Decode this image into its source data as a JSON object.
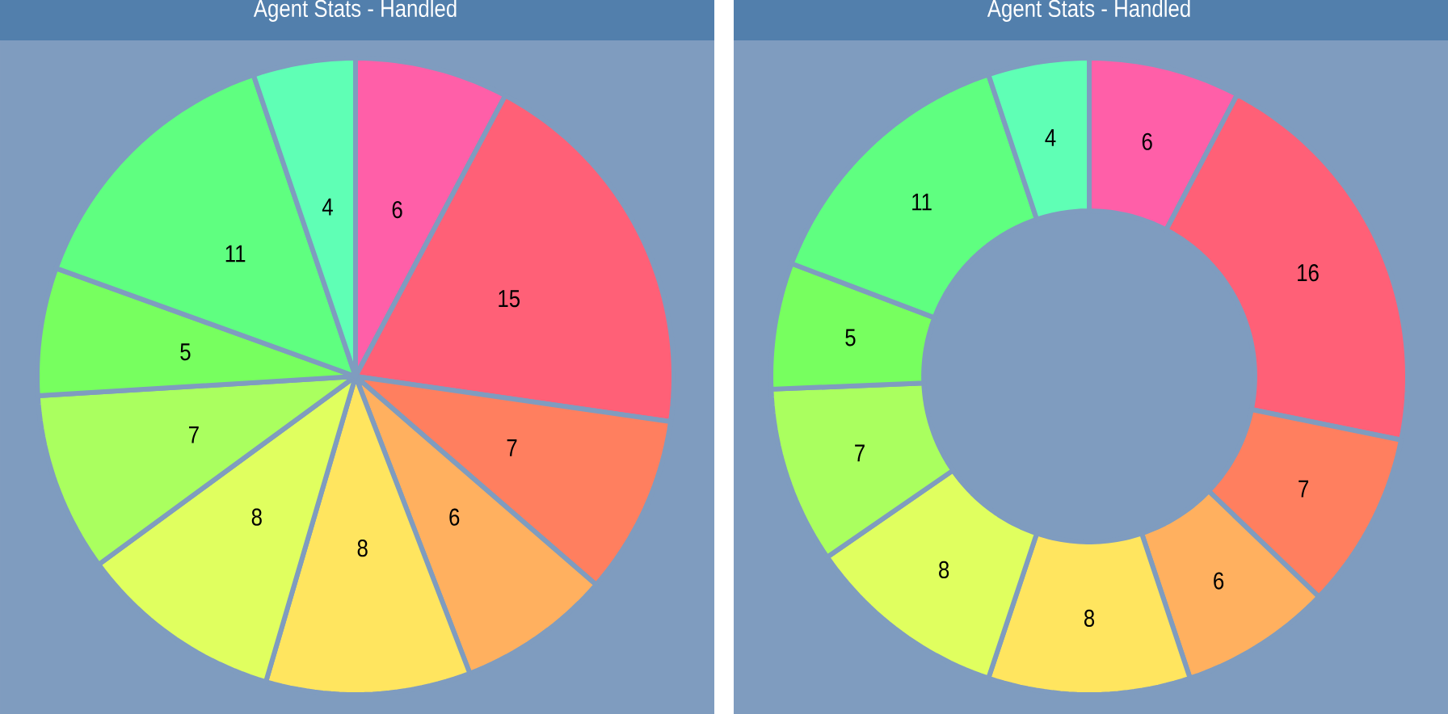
{
  "chart_data": [
    {
      "type": "pie",
      "title": "Agent Stats - Handled",
      "categories": [
        null,
        null,
        null,
        null,
        null,
        null,
        null,
        null,
        null,
        null
      ],
      "values": [
        6,
        15,
        7,
        6,
        8,
        8,
        7,
        5,
        11,
        4
      ],
      "colors": [
        "#ff5fa8",
        "#ff6077",
        "#ff7f5f",
        "#ffb05f",
        "#ffe55f",
        "#e0ff5f",
        "#aaff5f",
        "#77ff5f",
        "#5fff80",
        "#5fffb5"
      ],
      "data_labels": true
    },
    {
      "type": "donut",
      "title": "Agent Stats - Handled",
      "categories": [
        null,
        null,
        null,
        null,
        null,
        null,
        null,
        null,
        null,
        null
      ],
      "values": [
        6,
        16,
        7,
        6,
        8,
        8,
        7,
        5,
        11,
        4
      ],
      "colors": [
        "#ff5fa8",
        "#ff6077",
        "#ff7f5f",
        "#ffb05f",
        "#ffe55f",
        "#e0ff5f",
        "#aaff5f",
        "#77ff5f",
        "#5fff80",
        "#5fffb5"
      ],
      "data_labels": true
    }
  ]
}
